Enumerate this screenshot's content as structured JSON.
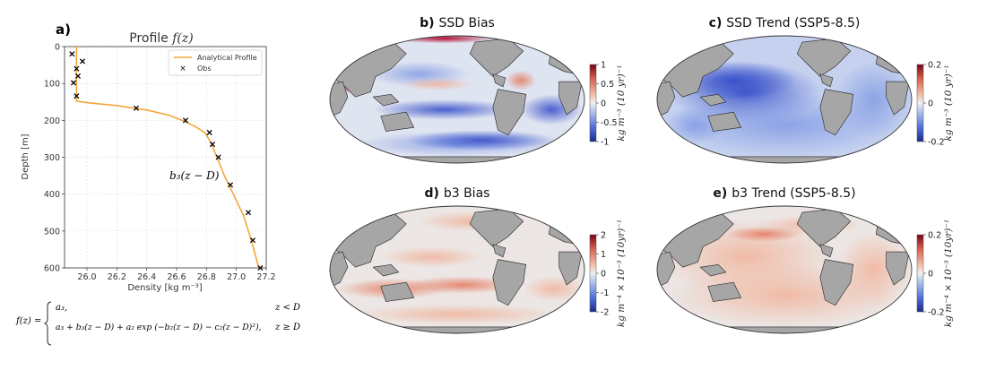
{
  "panel_a": {
    "letter": "a)",
    "title_text": "Profile ",
    "title_fz": "f(z)",
    "xlabel": "Density [kg m⁻³]",
    "ylabel": "Depth [m]",
    "legend": {
      "line": "Analytical Profile",
      "obs": "Obs"
    },
    "annotation": "b₃(z − D)",
    "formula": {
      "lhs": "f(z) =",
      "case1": "a₃,",
      "case1_cond": "z < D",
      "case2": "a₃ + b₃(z − D) + a₂ exp (−b₂(z − D) − c₂(z − D)²),",
      "case2_cond": "z ≥ D"
    }
  },
  "maps": [
    {
      "letter": "b)",
      "title": "SSD Bias",
      "cbar_label": "kg m⁻³ (10 yr)⁻¹",
      "ticks": [
        "1",
        "0.5",
        "0",
        "-0.5",
        "-1"
      ]
    },
    {
      "letter": "c)",
      "title": "SSD Trend (SSP5-8.5)",
      "cbar_label": "kg m⁻³ (10 yr)⁻¹",
      "ticks": [
        "0.2",
        "0",
        "-0.2"
      ]
    },
    {
      "letter": "d)",
      "title": "b3 Bias",
      "cbar_label": "kg m⁻⁴ × 10⁻³ (10yr)⁻¹",
      "ticks": [
        "2",
        "1",
        "0",
        "-1",
        "-2"
      ]
    },
    {
      "letter": "e)",
      "title": "b3 Trend (SSP5-8.5)",
      "cbar_label": "kg m⁻⁴ × 10⁻³ (10yr)⁻¹",
      "ticks": [
        "0.2",
        "0",
        "-0.2"
      ]
    }
  ],
  "chart_data": {
    "type": "line",
    "xlim": [
      25.85,
      27.2
    ],
    "ylim": [
      600,
      0
    ],
    "xticks": [
      "26.0",
      "26.2",
      "26.4",
      "26.6",
      "26.8",
      "27.0",
      "27.2"
    ],
    "yticks": [
      "0",
      "100",
      "200",
      "300",
      "400",
      "500",
      "600"
    ],
    "grid": true,
    "legend_position": "top-right",
    "series": [
      {
        "name": "Analytical Profile",
        "color": "#f4a63a",
        "x": [
          25.93,
          25.93,
          25.93,
          26.0,
          26.2,
          26.4,
          26.55,
          26.65,
          26.73,
          26.79,
          26.83,
          26.87,
          26.92,
          26.98,
          27.05,
          27.1,
          27.15
        ],
        "y": [
          0,
          100,
          148,
          152,
          160,
          172,
          186,
          202,
          218,
          234,
          260,
          300,
          350,
          400,
          460,
          525,
          600
        ]
      },
      {
        "name": "Obs",
        "color": "#000000",
        "x": [
          25.9,
          25.97,
          25.93,
          25.94,
          25.91,
          25.93,
          26.33,
          26.66,
          26.82,
          26.84,
          26.88,
          26.96,
          27.08,
          27.11,
          27.16
        ],
        "y": [
          20,
          40,
          60,
          80,
          98,
          134,
          167,
          200,
          233,
          265,
          300,
          375,
          450,
          525,
          600
        ]
      }
    ]
  },
  "colors": {
    "neg": "#3b4cc0",
    "zero": "#e8e8e8",
    "pos": "#b40426",
    "land": "#a6a6a6",
    "line": "#f4a63a"
  }
}
